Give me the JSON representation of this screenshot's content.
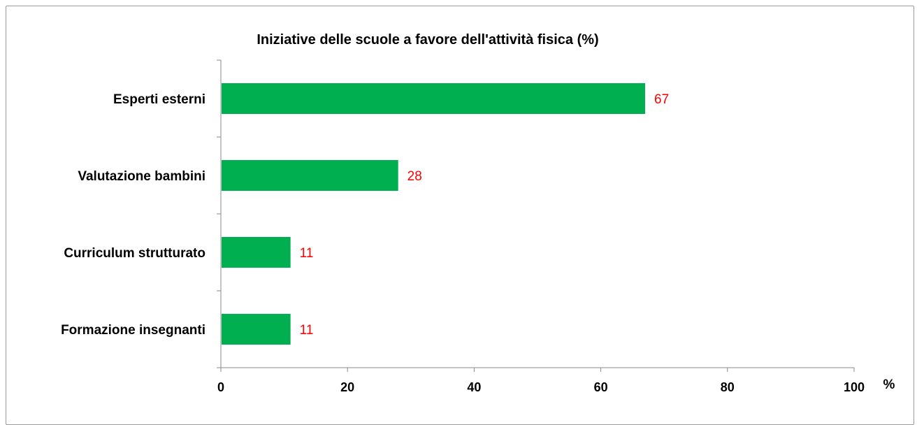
{
  "chart_data": {
    "type": "bar",
    "orientation": "horizontal",
    "title": "Iniziative delle scuole a favore dell'attività fisica (%)",
    "categories": [
      "Esperti esterni",
      "Valutazione bambini",
      "Curriculum strutturato",
      "Formazione insegnanti"
    ],
    "values": [
      67,
      28,
      11,
      11
    ],
    "data_labels": [
      "67",
      "28",
      "11",
      "11"
    ],
    "xlim": [
      0,
      100
    ],
    "x_ticks": [
      "0",
      "20",
      "40",
      "60",
      "80",
      "100"
    ],
    "x_unit": "%",
    "grid": false,
    "legend": "none",
    "bar_color": "#00b050",
    "label_color": "#ff0000"
  }
}
